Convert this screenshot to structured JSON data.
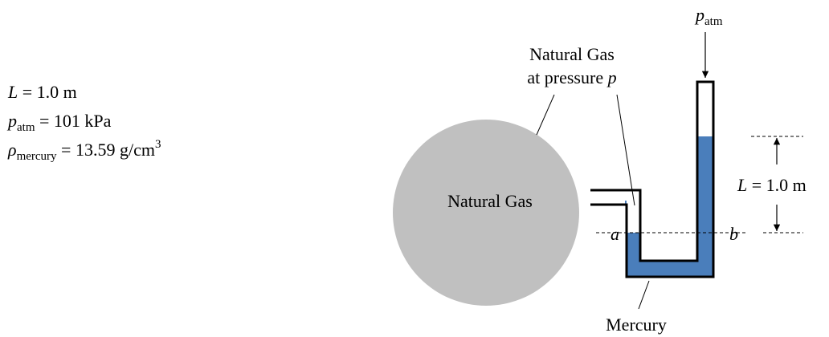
{
  "given": [
    {
      "symbol": "L",
      "text": " = 1.0 m"
    },
    {
      "symbol": "p",
      "sub": "atm",
      "text": " = 101 kPa"
    },
    {
      "symbol": "ρ",
      "sub": "mercury",
      "text": " = 13.59 g/cm",
      "sup": "3"
    }
  ],
  "tank_label": "Natural Gas",
  "gas_label": {
    "line1": "Natural Gas",
    "line2": "at pressure ",
    "symbol": "p"
  },
  "top_label": {
    "symbol": "p",
    "sub": "atm"
  },
  "height_label": {
    "symbol": "L",
    "text": " = 1.0 m"
  },
  "point_a": "a",
  "point_b": "b",
  "fluid_label": "Mercury"
}
